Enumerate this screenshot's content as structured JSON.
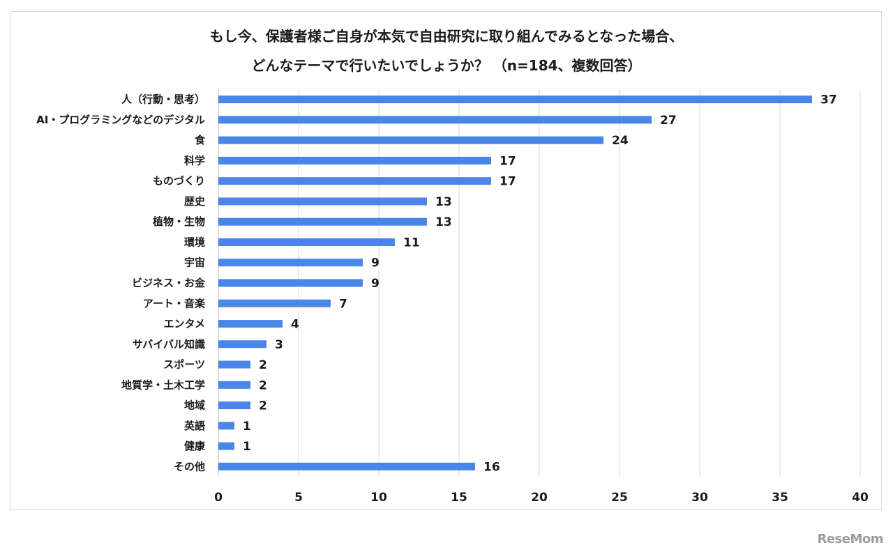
{
  "chart_data": {
    "type": "bar",
    "orientation": "horizontal",
    "title_lines": [
      "もし今、保護者様ご自身が本気で自由研究に取り組んでみるとなった場合、",
      "どんなテーマで行いたいでしょうか？ （n=184、複数回答）"
    ],
    "categories": [
      "人（行動・思考）",
      "AI・プログラミングなどのデジタル",
      "食",
      "科学",
      "ものづくり",
      "歴史",
      "植物・生物",
      "環境",
      "宇宙",
      "ビジネス・お金",
      "アート・音楽",
      "エンタメ",
      "サバイバル知識",
      "スポーツ",
      "地質学・土木工学",
      "地域",
      "英語",
      "健康",
      "その他"
    ],
    "values": [
      37,
      27,
      24,
      17,
      17,
      13,
      13,
      11,
      9,
      9,
      7,
      4,
      3,
      2,
      2,
      2,
      1,
      1,
      16
    ],
    "xlim": [
      0,
      40
    ],
    "xticks": [
      0,
      5,
      10,
      15,
      20,
      25,
      30,
      35,
      40
    ],
    "grid": "vertical",
    "bar_color": "#4a86e8",
    "grid_color": "#d9d9d9"
  },
  "watermark": "ReseMom"
}
